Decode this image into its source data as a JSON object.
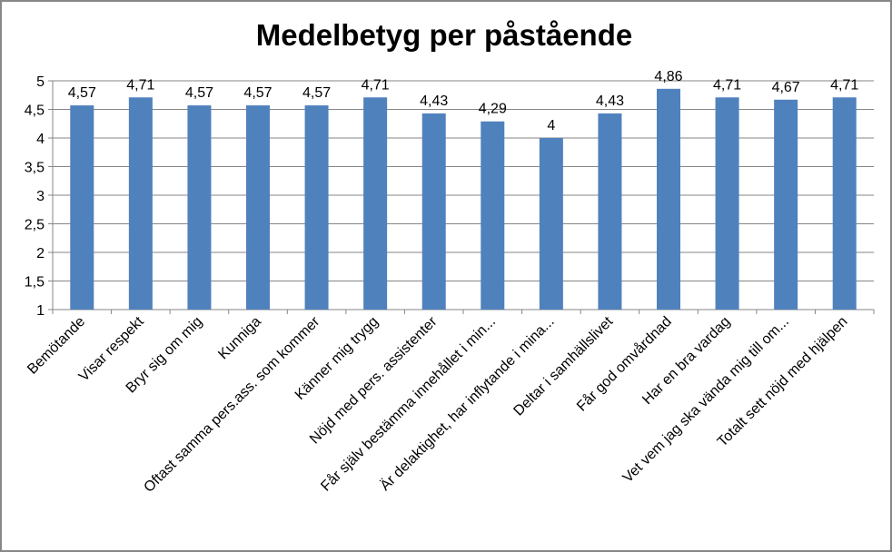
{
  "chart_data": {
    "type": "bar",
    "title": "Medelbetyg per påstående",
    "xlabel": "",
    "ylabel": "",
    "ylim": [
      1,
      5
    ],
    "yticks": [
      "1",
      "1,5",
      "2",
      "2,5",
      "3",
      "3,5",
      "4",
      "4,5",
      "5"
    ],
    "grid": true,
    "legend": "none",
    "bar_color": "#4F81BD",
    "categories": [
      "Bemötande",
      "Visar respekt",
      "Bryr sig om mig",
      "Kunniga",
      "Oftast samma pers.ass. som kommer",
      "Känner mig trygg",
      "Nöjd med pers. assistenter",
      "Får själv bestämma innehållet i min...",
      "Är delaktighet, har inflytande i mina...",
      "Deltar i samhällslivet",
      "Får god omvårdnad",
      "Har en bra vardag",
      "Vet vem jag ska vända mig till om...",
      "Totalt sett nöjd med hjälpen"
    ],
    "values": [
      4.57,
      4.71,
      4.57,
      4.57,
      4.57,
      4.71,
      4.43,
      4.29,
      4,
      4.43,
      4.86,
      4.71,
      4.67,
      4.71
    ],
    "data_labels": [
      "4,57",
      "4,71",
      "4,57",
      "4,57",
      "4,57",
      "4,71",
      "4,43",
      "4,29",
      "4",
      "4,43",
      "4,86",
      "4,71",
      "4,67",
      "4,71"
    ]
  }
}
